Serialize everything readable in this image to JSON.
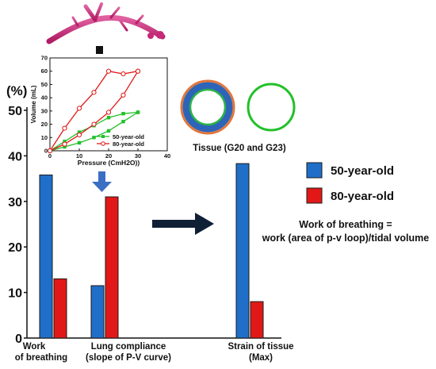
{
  "main_chart": {
    "y_unit": "(%)",
    "y_ticks": [
      "0",
      "10",
      "20",
      "30",
      "40",
      "50"
    ],
    "ylim": [
      0,
      50
    ],
    "categories": [
      {
        "line1": "Work",
        "line2": "of breathing"
      },
      {
        "line1": "Lung compliance",
        "line2": "(slope of P-V curve)"
      },
      {
        "line1": "Strain of tissue",
        "line2": "(Max)"
      }
    ]
  },
  "legend": {
    "items": [
      {
        "label": "50-year-old",
        "color": "#1f6fc9"
      },
      {
        "label": "80-year-old",
        "color": "#e21818"
      }
    ]
  },
  "formula": {
    "line1": "Work of breathing =",
    "line2": "work (area of p-v loop)/tidal volume"
  },
  "tissue": {
    "label": "Tissue (G20 and G23)"
  },
  "chart_data": [
    {
      "type": "bar",
      "categories": [
        "Work of breathing",
        "Lung compliance (slope of P-V curve)",
        "Strain of tissue (Max)"
      ],
      "series": [
        {
          "name": "50-year-old",
          "color": "#1f6fc9",
          "values": [
            35.8,
            11.5,
            38.3
          ]
        },
        {
          "name": "80-year-old",
          "color": "#e21818",
          "values": [
            13.0,
            31.0,
            8.0
          ]
        }
      ],
      "ylabel": "(%)",
      "ylim": [
        0,
        50
      ],
      "legend": "right"
    },
    {
      "type": "line",
      "xlabel": "Pressure (CmH2O))",
      "ylabel": "Volume (mL)",
      "xlim": [
        0,
        40
      ],
      "ylim": [
        0,
        70
      ],
      "x_ticks": [
        "0",
        "10",
        "20",
        "30",
        "40"
      ],
      "y_ticks": [
        "0",
        "10",
        "20",
        "30",
        "40",
        "50",
        "60",
        "70"
      ],
      "legend": "bottom-right",
      "series": [
        {
          "name": "50-year-old",
          "color": "#22c02a",
          "marker": "square",
          "x": [
            0,
            5,
            10,
            15,
            20,
            25,
            30,
            30,
            25,
            20,
            15,
            10,
            5,
            0
          ],
          "y": [
            0,
            3,
            6,
            10,
            15,
            22,
            29,
            29,
            28,
            25,
            19,
            14,
            7,
            0
          ]
        },
        {
          "name": "80-year-old",
          "color": "#e21818",
          "marker": "diamond",
          "x": [
            0,
            5,
            10,
            15,
            20,
            25,
            30,
            30,
            25,
            20,
            15,
            10,
            5,
            0
          ],
          "y": [
            0,
            5,
            12,
            20,
            29,
            42,
            60,
            60,
            58,
            60,
            44,
            32,
            17,
            0
          ]
        }
      ]
    }
  ]
}
